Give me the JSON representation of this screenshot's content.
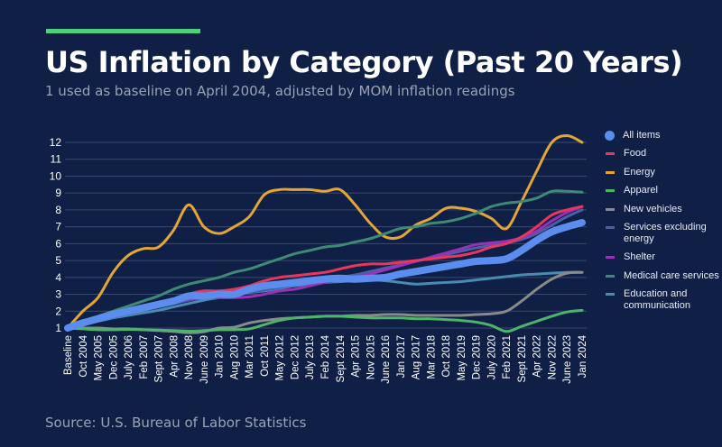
{
  "header": {
    "title": "US Inflation by Category (Past 20 Years)",
    "subtitle": "1 used as baseline on April 2004, adjusted by MOM inflation readings"
  },
  "footer": {
    "source": "Source: U.S. Bureau of Labor Statistics"
  },
  "colors": {
    "background": "#0f1f45",
    "accent": "#4fd07e"
  },
  "chart_data": {
    "type": "line",
    "title": "US Inflation by Category (Past 20 Years)",
    "subtitle": "1 used as baseline on April 2004, adjusted by MOM inflation readings",
    "xlabel": "",
    "ylabel": "",
    "ylim": [
      1,
      12
    ],
    "yticks": [
      1,
      2,
      3,
      4,
      5,
      6,
      7,
      8,
      9,
      10,
      11,
      12
    ],
    "grid": true,
    "legend": "right",
    "categories": [
      "Baseline",
      "Oct 2004",
      "May 2005",
      "Dec 2005",
      "July 2006",
      "Feb 2007",
      "Sept 2007",
      "Apr 2008",
      "Nov 2008",
      "June 2009",
      "Jan 2010",
      "Aug 2010",
      "Mar 2011",
      "Oct 2011",
      "May 2012",
      "Dec 2012",
      "July 2013",
      "Feb 2014",
      "Sept 2014",
      "Apr 2015",
      "Nov 2015",
      "June 2016",
      "Jan 2017",
      "Aug 2017",
      "Mar 2018",
      "Oct 2018",
      "May 2019",
      "Dec 2019",
      "July 2020",
      "Feb 2021",
      "Sept 2021",
      "Apr 2022",
      "Nov 2022",
      "June 2023",
      "Jan 2024"
    ],
    "series": [
      {
        "name": "Energy",
        "color": "#e3a535",
        "values": [
          1,
          2.0,
          2.8,
          4.3,
          5.3,
          5.7,
          5.8,
          6.8,
          8.3,
          7.0,
          6.6,
          7.0,
          7.6,
          8.9,
          9.2,
          9.2,
          9.2,
          9.1,
          9.2,
          8.3,
          7.2,
          6.4,
          6.4,
          7.1,
          7.5,
          8.1,
          8.1,
          7.9,
          7.5,
          6.9,
          8.5,
          10.3,
          12.0,
          12.4,
          12.0
        ]
      },
      {
        "name": "Medical care services",
        "color": "#3f8a75",
        "values": [
          1,
          1.4,
          1.7,
          2.0,
          2.3,
          2.6,
          2.9,
          3.3,
          3.6,
          3.8,
          4.0,
          4.3,
          4.5,
          4.8,
          5.1,
          5.4,
          5.6,
          5.8,
          5.9,
          6.1,
          6.3,
          6.6,
          6.9,
          7.0,
          7.2,
          7.3,
          7.5,
          7.8,
          8.2,
          8.4,
          8.5,
          8.7,
          9.1,
          9.1,
          9.05
        ]
      },
      {
        "name": "Education and communication",
        "color": "#4a8bb0",
        "values": [
          1,
          1.2,
          1.4,
          1.6,
          1.75,
          1.9,
          2.05,
          2.25,
          2.45,
          2.65,
          2.8,
          2.95,
          3.1,
          3.2,
          3.35,
          3.5,
          3.6,
          3.7,
          3.75,
          3.8,
          3.85,
          3.8,
          3.7,
          3.6,
          3.65,
          3.7,
          3.75,
          3.85,
          3.95,
          4.05,
          4.15,
          4.2,
          4.25,
          4.3,
          4.3
        ]
      },
      {
        "name": "Services excluding energy",
        "color": "#4a5fa8",
        "values": [
          1,
          1.25,
          1.45,
          1.65,
          1.85,
          2.05,
          2.25,
          2.45,
          2.65,
          2.8,
          2.9,
          3.0,
          3.1,
          3.25,
          3.4,
          3.55,
          3.7,
          3.85,
          4.0,
          4.15,
          4.35,
          4.55,
          4.75,
          4.95,
          5.15,
          5.35,
          5.55,
          5.75,
          5.9,
          6.05,
          6.25,
          6.6,
          7.1,
          7.6,
          8.0
        ]
      },
      {
        "name": "Shelter",
        "color": "#9b30b8",
        "values": [
          1,
          1.3,
          1.5,
          1.7,
          1.9,
          2.1,
          2.3,
          2.5,
          2.7,
          2.8,
          2.8,
          2.8,
          2.85,
          3.0,
          3.2,
          3.3,
          3.5,
          3.7,
          3.85,
          4.0,
          4.2,
          4.45,
          4.7,
          4.95,
          5.2,
          5.45,
          5.7,
          5.95,
          6.05,
          6.15,
          6.35,
          6.75,
          7.35,
          7.85,
          8.2
        ]
      },
      {
        "name": "Food",
        "color": "#e8365d",
        "values": [
          1,
          1.3,
          1.5,
          1.7,
          1.9,
          2.1,
          2.3,
          2.6,
          3.0,
          3.2,
          3.2,
          3.3,
          3.5,
          3.8,
          4.0,
          4.1,
          4.2,
          4.3,
          4.5,
          4.7,
          4.8,
          4.8,
          4.9,
          5.0,
          5.1,
          5.2,
          5.3,
          5.5,
          5.8,
          6.0,
          6.4,
          7.0,
          7.7,
          8.0,
          8.2
        ]
      },
      {
        "name": "New vehicles",
        "color": "#8a8a8a",
        "values": [
          1,
          1.0,
          1.0,
          0.95,
          0.95,
          0.9,
          0.85,
          0.8,
          0.72,
          0.78,
          1.0,
          1.05,
          1.3,
          1.45,
          1.55,
          1.6,
          1.65,
          1.7,
          1.7,
          1.75,
          1.75,
          1.8,
          1.8,
          1.75,
          1.75,
          1.75,
          1.75,
          1.8,
          1.85,
          2.0,
          2.6,
          3.3,
          3.9,
          4.25,
          4.3
        ]
      },
      {
        "name": "Apparel",
        "color": "#4cb56a",
        "values": [
          1,
          0.95,
          0.9,
          0.9,
          0.92,
          0.9,
          0.88,
          0.85,
          0.82,
          0.85,
          0.9,
          0.9,
          0.95,
          1.2,
          1.45,
          1.6,
          1.65,
          1.7,
          1.7,
          1.65,
          1.6,
          1.6,
          1.6,
          1.55,
          1.55,
          1.5,
          1.45,
          1.35,
          1.15,
          0.8,
          1.1,
          1.4,
          1.7,
          1.95,
          2.05
        ]
      },
      {
        "name": "All items",
        "color": "#5b8def",
        "values": [
          1,
          1.3,
          1.55,
          1.8,
          2.0,
          2.2,
          2.4,
          2.6,
          2.9,
          2.9,
          3.0,
          3.0,
          3.3,
          3.5,
          3.6,
          3.7,
          3.8,
          3.9,
          3.95,
          3.9,
          3.95,
          4.0,
          4.2,
          4.35,
          4.5,
          4.65,
          4.8,
          4.95,
          5.0,
          5.1,
          5.6,
          6.2,
          6.7,
          7.0,
          7.25
        ]
      }
    ],
    "legend_entries": [
      {
        "label": "All items",
        "color": "#5b8def",
        "marker": "circle"
      },
      {
        "label": "Food",
        "color": "#e8365d",
        "marker": "line"
      },
      {
        "label": "Energy",
        "color": "#e3a535",
        "marker": "line"
      },
      {
        "label": "Apparel",
        "color": "#4cb56a",
        "marker": "line"
      },
      {
        "label": "New vehicles",
        "color": "#8a8a8a",
        "marker": "line"
      },
      {
        "label": "Services excluding energy",
        "color": "#4a5fa8",
        "marker": "line"
      },
      {
        "label": "Shelter",
        "color": "#9b30b8",
        "marker": "line"
      },
      {
        "label": "Medical care services",
        "color": "#3f8a75",
        "marker": "line"
      },
      {
        "label": "Education and communication",
        "color": "#4a8bb0",
        "marker": "line"
      }
    ]
  }
}
